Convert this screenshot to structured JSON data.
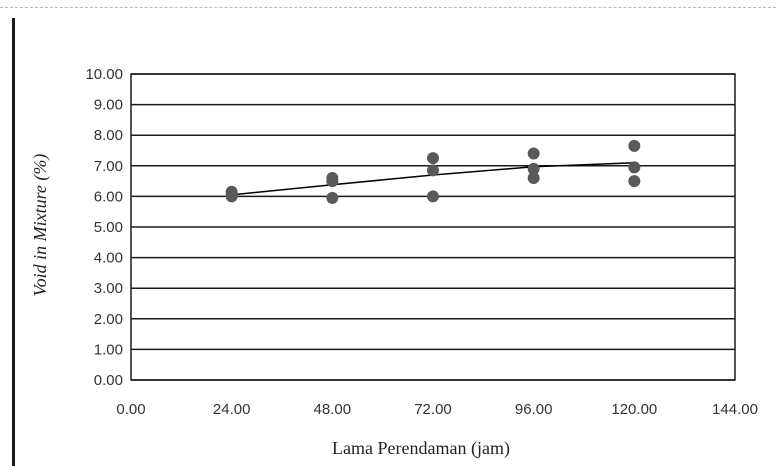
{
  "chart_data": {
    "type": "scatter",
    "title": "",
    "xlabel": "Lama Perendaman (jam)",
    "ylabel": "Void in Mixture (%)",
    "xlim": [
      0,
      144
    ],
    "ylim": [
      0,
      10
    ],
    "x_ticks": [
      "0.00",
      "24.00",
      "48.00",
      "72.00",
      "96.00",
      "120.00",
      "144.00"
    ],
    "y_ticks": [
      "0.00",
      "1.00",
      "2.00",
      "3.00",
      "4.00",
      "5.00",
      "6.00",
      "7.00",
      "8.00",
      "9.00",
      "10.00"
    ],
    "grid": "horizontal",
    "legend": "none",
    "series": [
      {
        "type": "scatter",
        "color": "#595959",
        "points": [
          {
            "x": 24,
            "y": 6.15
          },
          {
            "x": 24,
            "y": 6.05
          },
          {
            "x": 24,
            "y": 6.0
          },
          {
            "x": 48,
            "y": 6.6
          },
          {
            "x": 48,
            "y": 6.5
          },
          {
            "x": 48,
            "y": 5.95
          },
          {
            "x": 72,
            "y": 7.25
          },
          {
            "x": 72,
            "y": 6.85
          },
          {
            "x": 72,
            "y": 6.0
          },
          {
            "x": 96,
            "y": 7.4
          },
          {
            "x": 96,
            "y": 6.9
          },
          {
            "x": 96,
            "y": 6.6
          },
          {
            "x": 120,
            "y": 7.65
          },
          {
            "x": 120,
            "y": 6.95
          },
          {
            "x": 120,
            "y": 6.5
          }
        ]
      },
      {
        "type": "line",
        "color": "#000000",
        "points": [
          {
            "x": 24,
            "y": 6.05
          },
          {
            "x": 48,
            "y": 6.38
          },
          {
            "x": 72,
            "y": 6.7
          },
          {
            "x": 96,
            "y": 6.97
          },
          {
            "x": 120,
            "y": 7.1
          }
        ]
      }
    ],
    "colors": {
      "gridline": "#1a1a1a",
      "text": "#333333"
    }
  }
}
